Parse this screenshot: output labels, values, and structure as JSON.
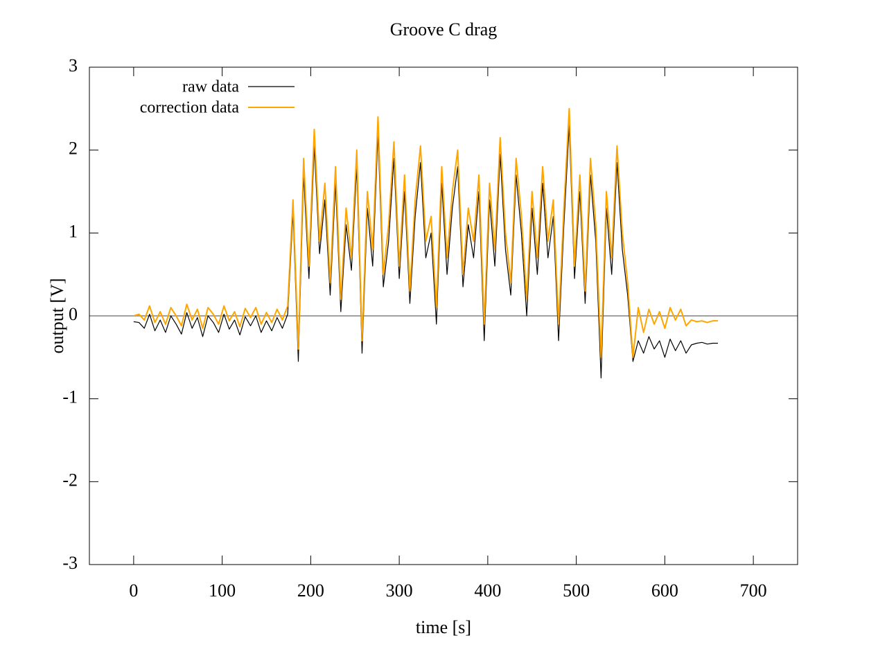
{
  "chart_data": {
    "type": "line",
    "title": "Groove C drag",
    "x_label": "time [s]",
    "y_label": "output [V]",
    "x": [
      0,
      6,
      12,
      18,
      24,
      30,
      36,
      42,
      48,
      54,
      60,
      66,
      72,
      78,
      84,
      90,
      96,
      102,
      108,
      114,
      120,
      126,
      132,
      138,
      144,
      150,
      156,
      162,
      168,
      174,
      180,
      186,
      192,
      198,
      204,
      210,
      216,
      222,
      228,
      234,
      240,
      246,
      252,
      258,
      264,
      270,
      276,
      282,
      288,
      294,
      300,
      306,
      312,
      318,
      324,
      330,
      336,
      342,
      348,
      354,
      360,
      366,
      372,
      378,
      384,
      390,
      396,
      402,
      408,
      414,
      420,
      426,
      432,
      438,
      444,
      450,
      456,
      462,
      468,
      474,
      480,
      486,
      492,
      498,
      504,
      510,
      516,
      522,
      528,
      534,
      540,
      546,
      552,
      558,
      564,
      570,
      576,
      582,
      588,
      594,
      600,
      606,
      612,
      618,
      624,
      630,
      636,
      642,
      648,
      654,
      660
    ],
    "series": [
      {
        "name": "raw data",
        "color": "#000000",
        "values": [
          -0.07,
          -0.08,
          -0.15,
          0.02,
          -0.18,
          -0.05,
          -0.2,
          0.0,
          -0.1,
          -0.22,
          0.04,
          -0.15,
          -0.02,
          -0.25,
          0.0,
          -0.08,
          -0.2,
          0.02,
          -0.16,
          -0.05,
          -0.23,
          -0.01,
          -0.12,
          0.0,
          -0.2,
          -0.06,
          -0.18,
          -0.02,
          -0.15,
          0.02,
          1.25,
          -0.55,
          1.7,
          0.45,
          2.05,
          0.75,
          1.4,
          0.25,
          1.6,
          0.05,
          1.1,
          0.55,
          1.8,
          -0.45,
          1.3,
          0.6,
          2.2,
          0.35,
          0.9,
          1.9,
          0.45,
          1.5,
          0.15,
          1.2,
          1.85,
          0.7,
          1.0,
          -0.1,
          1.6,
          0.5,
          1.3,
          1.8,
          0.35,
          1.1,
          0.7,
          1.5,
          -0.3,
          1.4,
          0.6,
          1.95,
          0.8,
          0.25,
          1.7,
          1.0,
          0.0,
          1.3,
          0.5,
          1.6,
          0.7,
          1.2,
          -0.3,
          1.1,
          2.3,
          0.45,
          1.5,
          0.15,
          1.7,
          0.9,
          -0.75,
          1.3,
          0.5,
          1.85,
          0.8,
          0.25,
          -0.55,
          -0.3,
          -0.45,
          -0.25,
          -0.4,
          -0.3,
          -0.5,
          -0.28,
          -0.42,
          -0.3,
          -0.45,
          -0.35,
          -0.33,
          -0.32,
          -0.34,
          -0.33,
          -0.33
        ]
      },
      {
        "name": "correction data",
        "color": "#ffa500",
        "values": [
          0.0,
          0.02,
          -0.05,
          0.12,
          -0.08,
          0.05,
          -0.1,
          0.1,
          0.0,
          -0.12,
          0.14,
          -0.05,
          0.08,
          -0.15,
          0.1,
          0.02,
          -0.1,
          0.12,
          -0.06,
          0.05,
          -0.13,
          0.09,
          -0.02,
          0.1,
          -0.1,
          0.04,
          -0.08,
          0.08,
          -0.05,
          0.12,
          1.4,
          -0.4,
          1.9,
          0.6,
          2.25,
          0.9,
          1.6,
          0.4,
          1.8,
          0.2,
          1.3,
          0.7,
          2.0,
          -0.3,
          1.5,
          0.8,
          2.4,
          0.5,
          1.1,
          2.1,
          0.6,
          1.7,
          0.3,
          1.4,
          2.05,
          0.9,
          1.2,
          0.1,
          1.8,
          0.7,
          1.5,
          2.0,
          0.5,
          1.3,
          0.9,
          1.7,
          -0.1,
          1.6,
          0.8,
          2.15,
          1.0,
          0.4,
          1.9,
          1.2,
          0.2,
          1.5,
          0.7,
          1.8,
          0.9,
          1.4,
          -0.1,
          1.3,
          2.5,
          0.6,
          1.7,
          0.3,
          1.9,
          1.1,
          -0.5,
          1.5,
          0.7,
          2.05,
          1.0,
          0.4,
          -0.5,
          0.1,
          -0.2,
          0.08,
          -0.1,
          0.05,
          -0.15,
          0.1,
          -0.05,
          0.08,
          -0.12,
          -0.05,
          -0.07,
          -0.06,
          -0.08,
          -0.06,
          -0.06
        ]
      }
    ],
    "xlim": [
      -50,
      750
    ],
    "xticks": [
      0,
      100,
      200,
      300,
      400,
      500,
      600,
      700
    ],
    "ylim": [
      -3,
      3
    ],
    "yticks": [
      -3,
      -2,
      -1,
      0,
      1,
      2,
      3
    ],
    "zero_line": true,
    "legend": "top-left",
    "grid": false
  }
}
